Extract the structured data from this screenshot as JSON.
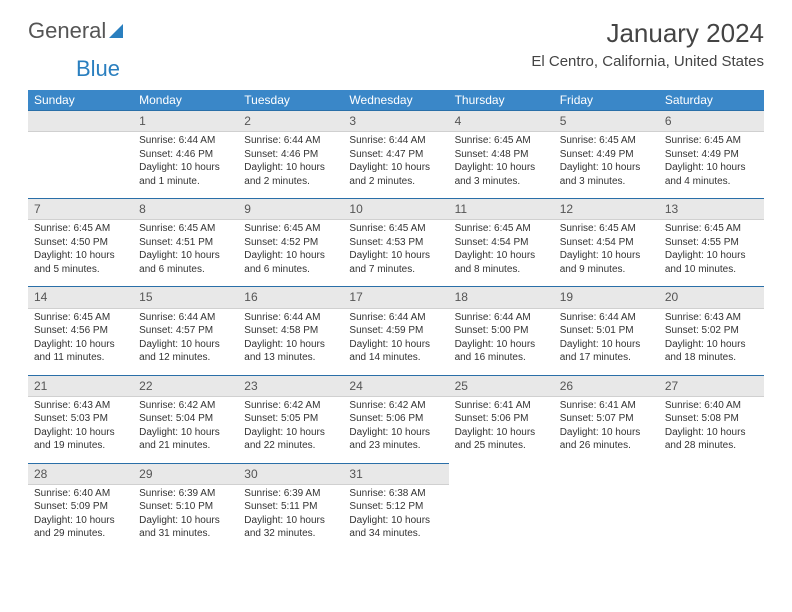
{
  "colors": {
    "header_bg": "#3a87c8",
    "header_text": "#ffffff",
    "daynum_bg": "#e8e8e8",
    "daynum_border_top": "#2a6fa8",
    "text": "#333333",
    "logo_grey": "#555555",
    "logo_blue": "#2a7fbf"
  },
  "logo": {
    "part1": "General",
    "part2": "Blue"
  },
  "title": "January 2024",
  "subtitle": "El Centro, California, United States",
  "weekdays": [
    "Sunday",
    "Monday",
    "Tuesday",
    "Wednesday",
    "Thursday",
    "Friday",
    "Saturday"
  ],
  "start_offset": 1,
  "days": [
    {
      "n": "1",
      "sunrise": "Sunrise: 6:44 AM",
      "sunset": "Sunset: 4:46 PM",
      "daylight": "Daylight: 10 hours and 1 minute."
    },
    {
      "n": "2",
      "sunrise": "Sunrise: 6:44 AM",
      "sunset": "Sunset: 4:46 PM",
      "daylight": "Daylight: 10 hours and 2 minutes."
    },
    {
      "n": "3",
      "sunrise": "Sunrise: 6:44 AM",
      "sunset": "Sunset: 4:47 PM",
      "daylight": "Daylight: 10 hours and 2 minutes."
    },
    {
      "n": "4",
      "sunrise": "Sunrise: 6:45 AM",
      "sunset": "Sunset: 4:48 PM",
      "daylight": "Daylight: 10 hours and 3 minutes."
    },
    {
      "n": "5",
      "sunrise": "Sunrise: 6:45 AM",
      "sunset": "Sunset: 4:49 PM",
      "daylight": "Daylight: 10 hours and 3 minutes."
    },
    {
      "n": "6",
      "sunrise": "Sunrise: 6:45 AM",
      "sunset": "Sunset: 4:49 PM",
      "daylight": "Daylight: 10 hours and 4 minutes."
    },
    {
      "n": "7",
      "sunrise": "Sunrise: 6:45 AM",
      "sunset": "Sunset: 4:50 PM",
      "daylight": "Daylight: 10 hours and 5 minutes."
    },
    {
      "n": "8",
      "sunrise": "Sunrise: 6:45 AM",
      "sunset": "Sunset: 4:51 PM",
      "daylight": "Daylight: 10 hours and 6 minutes."
    },
    {
      "n": "9",
      "sunrise": "Sunrise: 6:45 AM",
      "sunset": "Sunset: 4:52 PM",
      "daylight": "Daylight: 10 hours and 6 minutes."
    },
    {
      "n": "10",
      "sunrise": "Sunrise: 6:45 AM",
      "sunset": "Sunset: 4:53 PM",
      "daylight": "Daylight: 10 hours and 7 minutes."
    },
    {
      "n": "11",
      "sunrise": "Sunrise: 6:45 AM",
      "sunset": "Sunset: 4:54 PM",
      "daylight": "Daylight: 10 hours and 8 minutes."
    },
    {
      "n": "12",
      "sunrise": "Sunrise: 6:45 AM",
      "sunset": "Sunset: 4:54 PM",
      "daylight": "Daylight: 10 hours and 9 minutes."
    },
    {
      "n": "13",
      "sunrise": "Sunrise: 6:45 AM",
      "sunset": "Sunset: 4:55 PM",
      "daylight": "Daylight: 10 hours and 10 minutes."
    },
    {
      "n": "14",
      "sunrise": "Sunrise: 6:45 AM",
      "sunset": "Sunset: 4:56 PM",
      "daylight": "Daylight: 10 hours and 11 minutes."
    },
    {
      "n": "15",
      "sunrise": "Sunrise: 6:44 AM",
      "sunset": "Sunset: 4:57 PM",
      "daylight": "Daylight: 10 hours and 12 minutes."
    },
    {
      "n": "16",
      "sunrise": "Sunrise: 6:44 AM",
      "sunset": "Sunset: 4:58 PM",
      "daylight": "Daylight: 10 hours and 13 minutes."
    },
    {
      "n": "17",
      "sunrise": "Sunrise: 6:44 AM",
      "sunset": "Sunset: 4:59 PM",
      "daylight": "Daylight: 10 hours and 14 minutes."
    },
    {
      "n": "18",
      "sunrise": "Sunrise: 6:44 AM",
      "sunset": "Sunset: 5:00 PM",
      "daylight": "Daylight: 10 hours and 16 minutes."
    },
    {
      "n": "19",
      "sunrise": "Sunrise: 6:44 AM",
      "sunset": "Sunset: 5:01 PM",
      "daylight": "Daylight: 10 hours and 17 minutes."
    },
    {
      "n": "20",
      "sunrise": "Sunrise: 6:43 AM",
      "sunset": "Sunset: 5:02 PM",
      "daylight": "Daylight: 10 hours and 18 minutes."
    },
    {
      "n": "21",
      "sunrise": "Sunrise: 6:43 AM",
      "sunset": "Sunset: 5:03 PM",
      "daylight": "Daylight: 10 hours and 19 minutes."
    },
    {
      "n": "22",
      "sunrise": "Sunrise: 6:42 AM",
      "sunset": "Sunset: 5:04 PM",
      "daylight": "Daylight: 10 hours and 21 minutes."
    },
    {
      "n": "23",
      "sunrise": "Sunrise: 6:42 AM",
      "sunset": "Sunset: 5:05 PM",
      "daylight": "Daylight: 10 hours and 22 minutes."
    },
    {
      "n": "24",
      "sunrise": "Sunrise: 6:42 AM",
      "sunset": "Sunset: 5:06 PM",
      "daylight": "Daylight: 10 hours and 23 minutes."
    },
    {
      "n": "25",
      "sunrise": "Sunrise: 6:41 AM",
      "sunset": "Sunset: 5:06 PM",
      "daylight": "Daylight: 10 hours and 25 minutes."
    },
    {
      "n": "26",
      "sunrise": "Sunrise: 6:41 AM",
      "sunset": "Sunset: 5:07 PM",
      "daylight": "Daylight: 10 hours and 26 minutes."
    },
    {
      "n": "27",
      "sunrise": "Sunrise: 6:40 AM",
      "sunset": "Sunset: 5:08 PM",
      "daylight": "Daylight: 10 hours and 28 minutes."
    },
    {
      "n": "28",
      "sunrise": "Sunrise: 6:40 AM",
      "sunset": "Sunset: 5:09 PM",
      "daylight": "Daylight: 10 hours and 29 minutes."
    },
    {
      "n": "29",
      "sunrise": "Sunrise: 6:39 AM",
      "sunset": "Sunset: 5:10 PM",
      "daylight": "Daylight: 10 hours and 31 minutes."
    },
    {
      "n": "30",
      "sunrise": "Sunrise: 6:39 AM",
      "sunset": "Sunset: 5:11 PM",
      "daylight": "Daylight: 10 hours and 32 minutes."
    },
    {
      "n": "31",
      "sunrise": "Sunrise: 6:38 AM",
      "sunset": "Sunset: 5:12 PM",
      "daylight": "Daylight: 10 hours and 34 minutes."
    }
  ]
}
